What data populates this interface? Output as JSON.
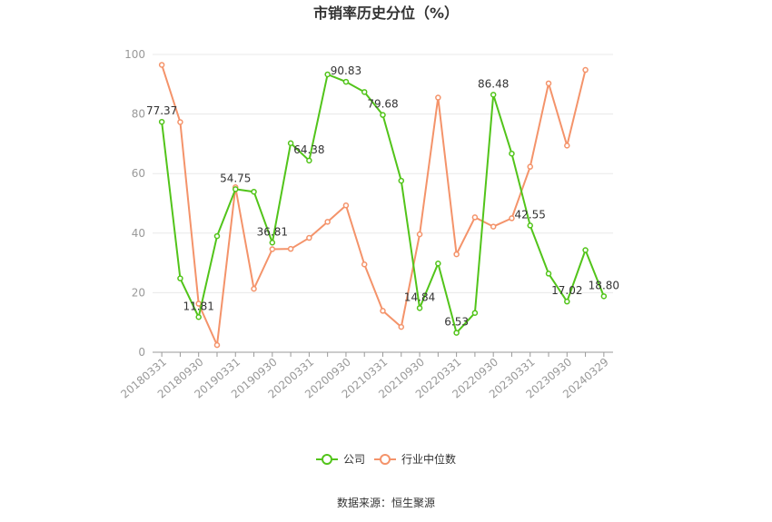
{
  "chart_data": {
    "type": "line",
    "title": "市销率历史分位（%）",
    "source": "数据来源：恒生聚源",
    "ylim": [
      0,
      100
    ],
    "yticks": [
      0,
      20,
      40,
      60,
      80,
      100
    ],
    "xticklabels": [
      "20180331",
      "20180930",
      "20190331",
      "20190930",
      "20200331",
      "20200930",
      "20210331",
      "20210930",
      "20220331",
      "20220930",
      "20230331",
      "20230930",
      "20240329"
    ],
    "legend": [
      "公司",
      "行业中位数"
    ],
    "legend_position": "bottom-center",
    "grid": true,
    "colors": {
      "company": "#52c41a",
      "industry": "#f4936a"
    },
    "series": [
      {
        "name": "公司",
        "values": [
          77.37,
          24.8,
          11.81,
          39.0,
          54.75,
          53.9,
          36.81,
          70.2,
          64.38,
          93.3,
          90.83,
          87.4,
          79.68,
          57.6,
          14.84,
          29.8,
          6.53,
          13.2,
          86.48,
          66.7,
          42.55,
          26.4,
          17.02,
          34.3,
          18.8
        ],
        "labels": {
          "0": "77.37",
          "2": "11.81",
          "4": "54.75",
          "6": "36.81",
          "8": "64.38",
          "10": "90.83",
          "12": "79.68",
          "14": "14.84",
          "16": "6.53",
          "18": "86.48",
          "20": "42.55",
          "22": "17.02",
          "24": "18.80"
        }
      },
      {
        "name": "行业中位数",
        "values": [
          96.5,
          77.3,
          16.3,
          2.4,
          55.4,
          21.3,
          34.6,
          34.7,
          38.4,
          43.8,
          49.3,
          29.5,
          13.9,
          8.5,
          39.6,
          85.5,
          32.9,
          45.3,
          42.2,
          45.0,
          62.3,
          90.3,
          69.4,
          94.8
        ]
      }
    ]
  }
}
